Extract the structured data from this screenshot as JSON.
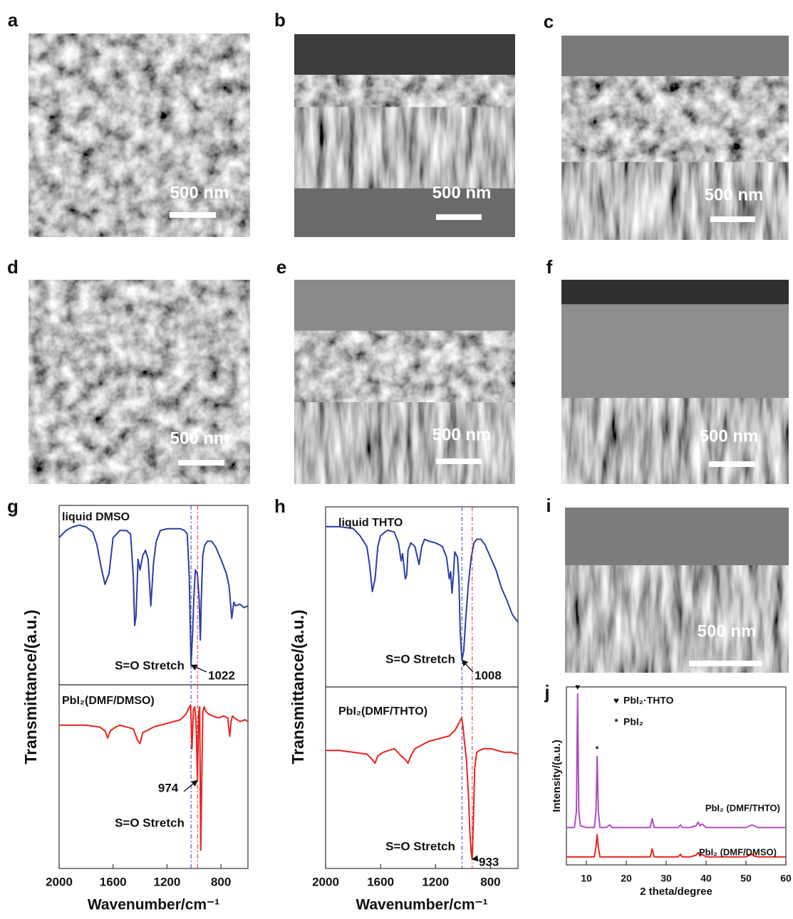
{
  "image_panels": [
    {
      "label": "a",
      "scale_bar": "500 nm"
    },
    {
      "label": "b",
      "scale_bar": "500 nm"
    },
    {
      "label": "c",
      "scale_bar": "500 nm"
    },
    {
      "label": "d",
      "scale_bar": "500 nm"
    },
    {
      "label": "e",
      "scale_bar": "500 nm"
    },
    {
      "label": "f",
      "scale_bar": "500 nm"
    },
    {
      "label": "i",
      "scale_bar": "500 nm"
    }
  ],
  "chart_data": [
    {
      "label": "g",
      "type": "line",
      "xlim": [
        2000,
        600
      ],
      "ylim": [
        0,
        100
      ],
      "x": [
        2000,
        1950,
        1900,
        1850,
        1800,
        1750,
        1720,
        1690,
        1660,
        1630,
        1600,
        1550,
        1500,
        1470,
        1450,
        1440,
        1430,
        1415,
        1400,
        1380,
        1360,
        1340,
        1320,
        1300,
        1280,
        1250,
        1200,
        1150,
        1100,
        1070,
        1050,
        1035,
        1022,
        1010,
        1000,
        990,
        975,
        962,
        953,
        945,
        935,
        920,
        900,
        870,
        840,
        800,
        760,
        740,
        720,
        705,
        690,
        660,
        630,
        600
      ],
      "series": [
        {
          "name": "liquid DMSO",
          "color": "#2b3ea6",
          "values": [
            82,
            86,
            88,
            89,
            88,
            85,
            78,
            66,
            56,
            62,
            82,
            86,
            86,
            84,
            60,
            33,
            38,
            70,
            64,
            72,
            75,
            70,
            44,
            68,
            80,
            86,
            87,
            87,
            87,
            86,
            84,
            60,
            11,
            30,
            50,
            64,
            62,
            48,
            25,
            50,
            72,
            78,
            80,
            80,
            77,
            70,
            62,
            55,
            37,
            46,
            44,
            45,
            43,
            44
          ]
        }
      ],
      "peaks": [
        1022
      ],
      "annotations": [
        "S=O Stretch"
      ]
    },
    {
      "type": "line",
      "xlim": [
        2000,
        600
      ],
      "ylim": [
        0,
        100
      ],
      "x": [
        2000,
        1900,
        1800,
        1700,
        1660,
        1640,
        1620,
        1580,
        1550,
        1500,
        1450,
        1420,
        1400,
        1380,
        1350,
        1300,
        1250,
        1200,
        1150,
        1100,
        1060,
        1040,
        1025,
        1015,
        1005,
        995,
        985,
        974,
        965,
        958,
        950,
        943,
        935,
        925,
        915,
        905,
        890,
        860,
        820,
        780,
        750,
        735,
        725,
        715,
        700,
        660,
        620,
        600
      ],
      "series": [
        {
          "name": "PbI₂(DMF/DMSO)",
          "color": "#e8231f",
          "values": [
            78,
            78,
            78,
            77,
            75,
            71,
            75,
            77,
            78,
            77,
            76,
            70,
            68,
            74,
            75,
            77,
            78,
            79,
            80,
            81,
            84,
            87,
            89,
            65,
            86,
            88,
            80,
            48,
            85,
            88,
            10,
            45,
            85,
            88,
            86,
            85,
            84,
            83,
            82,
            83,
            82,
            72,
            80,
            83,
            82,
            80,
            81,
            80
          ]
        }
      ],
      "peaks": [
        974
      ],
      "annotations": [
        "S=O Stretch"
      ],
      "xticks": [
        2000,
        1600,
        1200,
        800
      ],
      "xlabel": "Wavenumber/cm⁻¹",
      "ylabel": "Transmittance/(a.u.)"
    },
    {
      "label": "h",
      "type": "line",
      "xlim": [
        2000,
        600
      ],
      "ylim": [
        0,
        100
      ],
      "x": [
        2000,
        1900,
        1800,
        1750,
        1700,
        1680,
        1660,
        1640,
        1620,
        1600,
        1550,
        1500,
        1470,
        1450,
        1440,
        1420,
        1410,
        1400,
        1380,
        1350,
        1320,
        1300,
        1280,
        1250,
        1200,
        1150,
        1120,
        1100,
        1090,
        1080,
        1070,
        1060,
        1040,
        1030,
        1020,
        1008,
        995,
        980,
        960,
        940,
        920,
        900,
        870,
        840,
        800,
        760,
        720,
        680,
        640,
        600
      ],
      "series": [
        {
          "name": "liquid THTO",
          "color": "#2b3ea6",
          "values": [
            89,
            89,
            88,
            84,
            78,
            68,
            53,
            60,
            78,
            84,
            87,
            86,
            80,
            70,
            74,
            60,
            62,
            76,
            80,
            78,
            68,
            78,
            82,
            81,
            80,
            78,
            72,
            60,
            64,
            52,
            62,
            75,
            72,
            60,
            30,
            15,
            20,
            38,
            58,
            72,
            80,
            82,
            82,
            79,
            72,
            65,
            55,
            48,
            40,
            36
          ]
        }
      ],
      "peaks": [
        1008
      ],
      "annotations": [
        "S=O Stretch"
      ]
    },
    {
      "type": "line",
      "xlim": [
        2000,
        600
      ],
      "ylim": [
        0,
        100
      ],
      "x": [
        2000,
        1900,
        1800,
        1700,
        1660,
        1640,
        1620,
        1580,
        1500,
        1450,
        1420,
        1400,
        1380,
        1350,
        1300,
        1250,
        1200,
        1150,
        1100,
        1060,
        1030,
        1010,
        1000,
        990,
        975,
        960,
        950,
        940,
        933,
        925,
        915,
        900,
        880,
        850,
        800,
        750,
        700,
        650,
        600
      ],
      "series": [
        {
          "name": "PbI₂(DMF/THTO)",
          "color": "#e8231f",
          "values": [
            65,
            65,
            64,
            63,
            60,
            58,
            62,
            64,
            66,
            62,
            60,
            58,
            62,
            66,
            68,
            70,
            71,
            72,
            73,
            76,
            80,
            83,
            78,
            70,
            60,
            40,
            20,
            8,
            5,
            25,
            55,
            64,
            65,
            66,
            66,
            65,
            64,
            64,
            63
          ]
        }
      ],
      "peaks": [
        933
      ],
      "annotations": [
        "S=O Stretch"
      ],
      "xticks": [
        2000,
        1600,
        1200,
        800
      ],
      "xlabel": "Wavenumber/cm⁻¹",
      "ylabel": "Transmittance/(a.u.)"
    },
    {
      "label": "j",
      "type": "line",
      "xlim": [
        5,
        60
      ],
      "ylim": [
        0,
        100
      ],
      "x": [
        5,
        7,
        7.5,
        7.8,
        8.1,
        8.5,
        10,
        12,
        12.4,
        12.7,
        13,
        13.4,
        15,
        15.8,
        16.5,
        20,
        25,
        26,
        26.5,
        27,
        28,
        30,
        33,
        33.6,
        34,
        36,
        37.5,
        38,
        38.5,
        39,
        40,
        45,
        50,
        51.5,
        52,
        53,
        55,
        60
      ],
      "series": [
        {
          "name": "PbI₂ (DMF/THTO)",
          "color": "#b04cc0",
          "values": [
            21,
            21,
            30,
            96,
            30,
            22,
            21,
            21,
            30,
            61,
            30,
            21,
            21,
            22.5,
            21,
            21,
            21,
            21,
            26,
            21,
            21,
            21,
            21,
            22.5,
            21,
            21,
            22,
            24,
            22,
            23,
            21,
            21,
            21,
            22.5,
            22,
            21,
            21,
            21
          ]
        },
        {
          "name": "PbI₂ (DMF/DMSO)",
          "color": "#e8231f",
          "values": [
            4.5,
            4.5,
            4.5,
            4.5,
            4.5,
            4.5,
            4.5,
            4.5,
            10,
            17,
            10,
            4.5,
            4.5,
            4.5,
            4.5,
            4.5,
            4.5,
            4.5,
            9,
            4.5,
            4.5,
            4.5,
            4.5,
            6,
            4.5,
            4.5,
            5.5,
            7,
            5,
            6,
            4.5,
            4.5,
            4.5,
            6,
            5,
            4.5,
            4.5,
            4.5
          ]
        }
      ],
      "peak_markers": [
        {
          "symbol": "♥",
          "x": 7.8
        },
        {
          "symbol": "*",
          "x": 12.7
        }
      ],
      "marker_legend": [
        {
          "symbol": "♥",
          "text": "PbI₂·THTO"
        },
        {
          "symbol": "*",
          "text": "PbI₂"
        }
      ],
      "xticks": [
        10,
        20,
        30,
        40,
        50,
        60
      ],
      "xlabel": "2 theta/degree",
      "ylabel": "Intensity/(a.u.)"
    }
  ]
}
